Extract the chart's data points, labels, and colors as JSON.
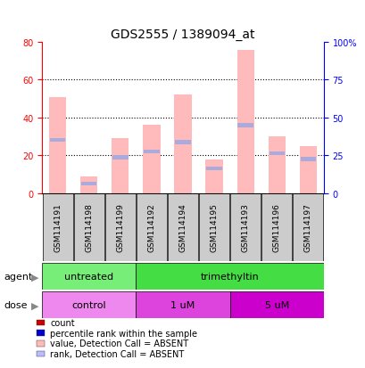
{
  "title": "GDS2555 / 1389094_at",
  "samples": [
    "GSM114191",
    "GSM114198",
    "GSM114199",
    "GSM114192",
    "GSM114194",
    "GSM114195",
    "GSM114193",
    "GSM114196",
    "GSM114197"
  ],
  "bar_values_pink": [
    51,
    9,
    29,
    36,
    52,
    18,
    76,
    30,
    25
  ],
  "bar_values_blue_abs": [
    28,
    5,
    19,
    22,
    27,
    13,
    36,
    21,
    18
  ],
  "left_ylim": [
    0,
    80
  ],
  "right_ylim": [
    0,
    100
  ],
  "left_yticks": [
    0,
    20,
    40,
    60,
    80
  ],
  "right_yticks": [
    0,
    25,
    50,
    75,
    100
  ],
  "right_yticklabels": [
    "0",
    "25",
    "50",
    "75",
    "100%"
  ],
  "agent_labels": [
    {
      "text": "untreated",
      "start": 0,
      "end": 3,
      "color": "#77ee77"
    },
    {
      "text": "trimethyltin",
      "start": 3,
      "end": 9,
      "color": "#44dd44"
    }
  ],
  "dose_labels": [
    {
      "text": "control",
      "start": 0,
      "end": 3,
      "color": "#ee88ee"
    },
    {
      "text": "1 uM",
      "start": 3,
      "end": 6,
      "color": "#dd44dd"
    },
    {
      "text": "5 uM",
      "start": 6,
      "end": 9,
      "color": "#cc00cc"
    }
  ],
  "legend_items": [
    {
      "color": "#cc0000",
      "label": "count"
    },
    {
      "color": "#0000cc",
      "label": "percentile rank within the sample"
    },
    {
      "color": "#ffbbbb",
      "label": "value, Detection Call = ABSENT"
    },
    {
      "color": "#bbbbff",
      "label": "rank, Detection Call = ABSENT"
    }
  ],
  "bar_width": 0.55,
  "pink_color": "#ffbbbb",
  "blue_color": "#aaaadd",
  "title_fontsize": 10,
  "tick_fontsize": 7,
  "sample_fontsize": 6.5,
  "label_fontsize": 8,
  "legend_fontsize": 7,
  "grid_color": "black",
  "bg_color": "#ffffff",
  "n_samples": 9
}
